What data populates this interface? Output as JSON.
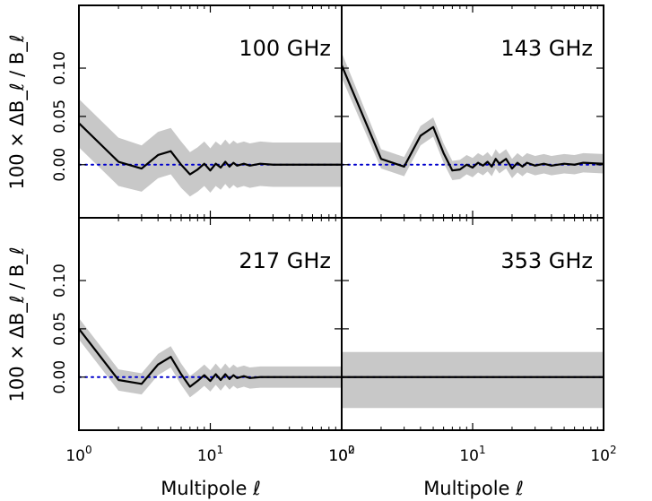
{
  "chart_data": {
    "type": "line",
    "layout": "2x2 grid, shared axes",
    "xscale": "log",
    "xlim": [
      1,
      100
    ],
    "ylim": [
      -0.055,
      0.165
    ],
    "xlabel": "Multipole ℓ",
    "ylabel": "100 × ΔB_ℓ / B_ℓ",
    "x_tick_labels": [
      "10^0",
      "10^1",
      "10^2"
    ],
    "y_tick_labels": [
      "0.00",
      "0.05",
      "0.10"
    ],
    "y_ticks": [
      0.0,
      0.05,
      0.1
    ],
    "x_ticks": [
      1,
      10,
      100
    ],
    "reference_line": {
      "y": 0.0,
      "style": "dotted",
      "color": "#0000cc"
    },
    "band_color": "#c8c8c8",
    "line_color": "#000000",
    "panels": [
      {
        "label": "100 GHz",
        "position": "top-left",
        "x": [
          1,
          2,
          3,
          4,
          5,
          6,
          7,
          8,
          9,
          10,
          11,
          12,
          13,
          14,
          15,
          16,
          18,
          20,
          24,
          30,
          40,
          50,
          70,
          100
        ],
        "y": [
          0.043,
          0.003,
          -0.004,
          0.01,
          0.014,
          0.0,
          -0.01,
          -0.005,
          0.001,
          -0.006,
          0.001,
          -0.003,
          0.003,
          -0.002,
          0.002,
          -0.001,
          0.001,
          -0.001,
          0.001,
          0.0,
          0.0,
          0.0,
          0.0,
          0.0
        ],
        "band": [
          0.025,
          0.025,
          0.024,
          0.024,
          0.024,
          0.024,
          0.023,
          0.023,
          0.023,
          0.023,
          0.023,
          0.023,
          0.023,
          0.023,
          0.023,
          0.023,
          0.023,
          0.023,
          0.023,
          0.023,
          0.023,
          0.023,
          0.023,
          0.023
        ]
      },
      {
        "label": "143 GHz",
        "position": "top-right",
        "x": [
          1,
          2,
          3,
          4,
          5,
          6,
          7,
          8,
          9,
          10,
          11,
          12,
          13,
          14,
          15,
          16,
          18,
          20,
          22,
          24,
          26,
          30,
          35,
          40,
          50,
          60,
          70,
          100
        ],
        "y": [
          0.103,
          0.006,
          -0.002,
          0.03,
          0.039,
          0.012,
          -0.006,
          -0.005,
          0.0,
          -0.003,
          0.002,
          -0.001,
          0.003,
          -0.002,
          0.006,
          0.001,
          0.006,
          -0.004,
          0.002,
          -0.002,
          0.002,
          -0.001,
          0.001,
          -0.001,
          0.001,
          0.0,
          0.002,
          0.001
        ],
        "band": [
          0.013,
          0.01,
          0.01,
          0.01,
          0.01,
          0.01,
          0.01,
          0.01,
          0.01,
          0.01,
          0.01,
          0.01,
          0.01,
          0.01,
          0.01,
          0.01,
          0.01,
          0.01,
          0.01,
          0.01,
          0.01,
          0.01,
          0.01,
          0.01,
          0.01,
          0.01,
          0.01,
          0.01
        ]
      },
      {
        "label": "217 GHz",
        "position": "bottom-left",
        "x": [
          1,
          2,
          3,
          4,
          5,
          6,
          7,
          8,
          9,
          10,
          11,
          12,
          13,
          14,
          15,
          16,
          18,
          20,
          24,
          30,
          40,
          50,
          70,
          100
        ],
        "y": [
          0.05,
          -0.003,
          -0.007,
          0.013,
          0.021,
          0.003,
          -0.01,
          -0.004,
          0.002,
          -0.004,
          0.003,
          -0.003,
          0.003,
          -0.002,
          0.002,
          -0.001,
          0.001,
          -0.001,
          0.0,
          0.0,
          0.0,
          0.0,
          0.0,
          0.0
        ],
        "band": [
          0.011,
          0.011,
          0.011,
          0.011,
          0.011,
          0.011,
          0.011,
          0.011,
          0.011,
          0.011,
          0.011,
          0.011,
          0.011,
          0.011,
          0.011,
          0.011,
          0.011,
          0.011,
          0.011,
          0.011,
          0.011,
          0.011,
          0.011,
          0.011
        ]
      },
      {
        "label": "353 GHz",
        "position": "bottom-right",
        "x": [
          1,
          100
        ],
        "y": [
          0.0,
          0.0
        ],
        "band": [
          0.029,
          0.029
        ],
        "band_offset": -0.003
      }
    ]
  }
}
